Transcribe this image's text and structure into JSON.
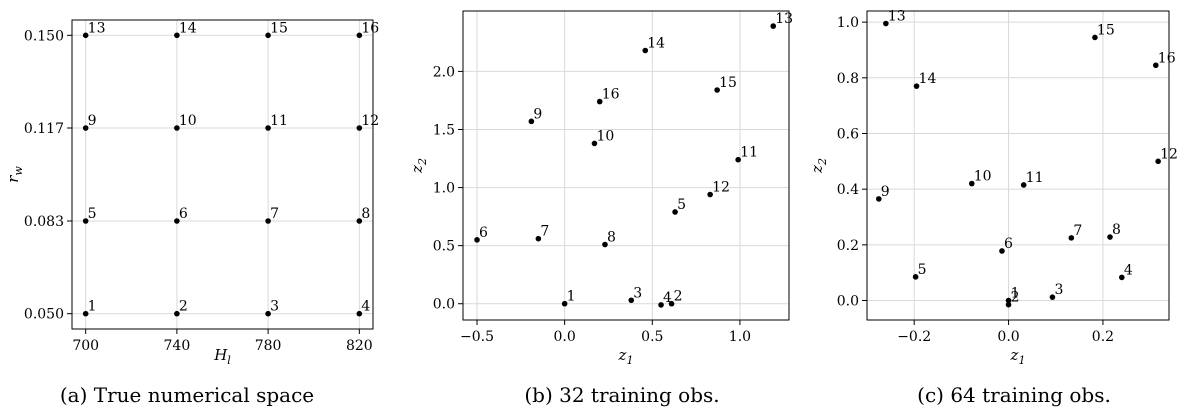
{
  "chart_data": [
    {
      "type": "scatter",
      "caption": "(a) True numerical space",
      "xlabel": "H_l",
      "ylabel": "r_w",
      "xlim": [
        694,
        826
      ],
      "ylim": [
        0.0445,
        0.1555
      ],
      "xticks": [
        700,
        740,
        780,
        820
      ],
      "xtick_labels": [
        "700",
        "740",
        "780",
        "820"
      ],
      "yticks": [
        0.05,
        0.0833,
        0.1167,
        0.15
      ],
      "ytick_labels": [
        "0.050",
        "0.083",
        "0.117",
        "0.150"
      ],
      "grid": true,
      "points": [
        {
          "label": "1",
          "x": 700,
          "y": 0.05
        },
        {
          "label": "2",
          "x": 740,
          "y": 0.05
        },
        {
          "label": "3",
          "x": 780,
          "y": 0.05
        },
        {
          "label": "4",
          "x": 820,
          "y": 0.05
        },
        {
          "label": "5",
          "x": 700,
          "y": 0.0833
        },
        {
          "label": "6",
          "x": 740,
          "y": 0.0833
        },
        {
          "label": "7",
          "x": 780,
          "y": 0.0833
        },
        {
          "label": "8",
          "x": 820,
          "y": 0.0833
        },
        {
          "label": "9",
          "x": 700,
          "y": 0.1167
        },
        {
          "label": "10",
          "x": 740,
          "y": 0.1167
        },
        {
          "label": "11",
          "x": 780,
          "y": 0.1167
        },
        {
          "label": "12",
          "x": 820,
          "y": 0.1167
        },
        {
          "label": "13",
          "x": 700,
          "y": 0.15
        },
        {
          "label": "14",
          "x": 740,
          "y": 0.15
        },
        {
          "label": "15",
          "x": 780,
          "y": 0.15
        },
        {
          "label": "16",
          "x": 820,
          "y": 0.15
        }
      ]
    },
    {
      "type": "scatter",
      "caption": "(b) 32 training obs.",
      "xlabel": "z_1",
      "ylabel": "z_2",
      "xlim": [
        -0.58,
        1.28
      ],
      "ylim": [
        -0.14,
        2.52
      ],
      "xticks": [
        -0.5,
        0,
        0.5,
        1
      ],
      "xtick_labels": [
        "−0.5",
        "0.0",
        "0.5",
        "1.0"
      ],
      "yticks": [
        0,
        0.5,
        1,
        1.5,
        2
      ],
      "ytick_labels": [
        "0.0",
        "0.5",
        "1.0",
        "1.5",
        "2.0"
      ],
      "grid": true,
      "points": [
        {
          "label": "1",
          "x": 0.0,
          "y": 0.0
        },
        {
          "label": "2",
          "x": 0.61,
          "y": 0.0
        },
        {
          "label": "3",
          "x": 0.38,
          "y": 0.03
        },
        {
          "label": "4",
          "x": 0.55,
          "y": -0.01
        },
        {
          "label": "5",
          "x": 0.63,
          "y": 0.79
        },
        {
          "label": "6",
          "x": -0.5,
          "y": 0.55
        },
        {
          "label": "7",
          "x": -0.15,
          "y": 0.56
        },
        {
          "label": "8",
          "x": 0.23,
          "y": 0.51
        },
        {
          "label": "9",
          "x": -0.19,
          "y": 1.57
        },
        {
          "label": "10",
          "x": 0.17,
          "y": 1.38
        },
        {
          "label": "11",
          "x": 0.99,
          "y": 1.24
        },
        {
          "label": "12",
          "x": 0.83,
          "y": 0.94
        },
        {
          "label": "13",
          "x": 1.19,
          "y": 2.39
        },
        {
          "label": "14",
          "x": 0.46,
          "y": 2.18
        },
        {
          "label": "15",
          "x": 0.87,
          "y": 1.84
        },
        {
          "label": "16",
          "x": 0.2,
          "y": 1.74
        }
      ]
    },
    {
      "type": "scatter",
      "caption": "(c) 64 training obs.",
      "xlabel": "z_1",
      "ylabel": "z_2",
      "xlim": [
        -0.3,
        0.34
      ],
      "ylim": [
        -0.07,
        1.04
      ],
      "xticks": [
        -0.2,
        0,
        0.2
      ],
      "xtick_labels": [
        "−0.2",
        "0.0",
        "0.2"
      ],
      "yticks": [
        0,
        0.2,
        0.4,
        0.6,
        0.8,
        1.0
      ],
      "ytick_labels": [
        "0.0",
        "0.2",
        "0.4",
        "0.6",
        "0.8",
        "1.0"
      ],
      "grid": true,
      "points": [
        {
          "label": "1",
          "x": 0.0,
          "y": 0.0
        },
        {
          "label": "2",
          "x": 0.0,
          "y": -0.015
        },
        {
          "label": "3",
          "x": 0.093,
          "y": 0.012
        },
        {
          "label": "4",
          "x": 0.24,
          "y": 0.083
        },
        {
          "label": "5",
          "x": -0.197,
          "y": 0.085
        },
        {
          "label": "6",
          "x": -0.014,
          "y": 0.178
        },
        {
          "label": "7",
          "x": 0.133,
          "y": 0.225
        },
        {
          "label": "8",
          "x": 0.215,
          "y": 0.228
        },
        {
          "label": "9",
          "x": -0.275,
          "y": 0.365
        },
        {
          "label": "10",
          "x": -0.078,
          "y": 0.42
        },
        {
          "label": "11",
          "x": 0.032,
          "y": 0.415
        },
        {
          "label": "12",
          "x": 0.317,
          "y": 0.5
        },
        {
          "label": "13",
          "x": -0.26,
          "y": 0.995
        },
        {
          "label": "14",
          "x": -0.195,
          "y": 0.77
        },
        {
          "label": "15",
          "x": 0.183,
          "y": 0.945
        },
        {
          "label": "16",
          "x": 0.312,
          "y": 0.845
        }
      ]
    }
  ]
}
